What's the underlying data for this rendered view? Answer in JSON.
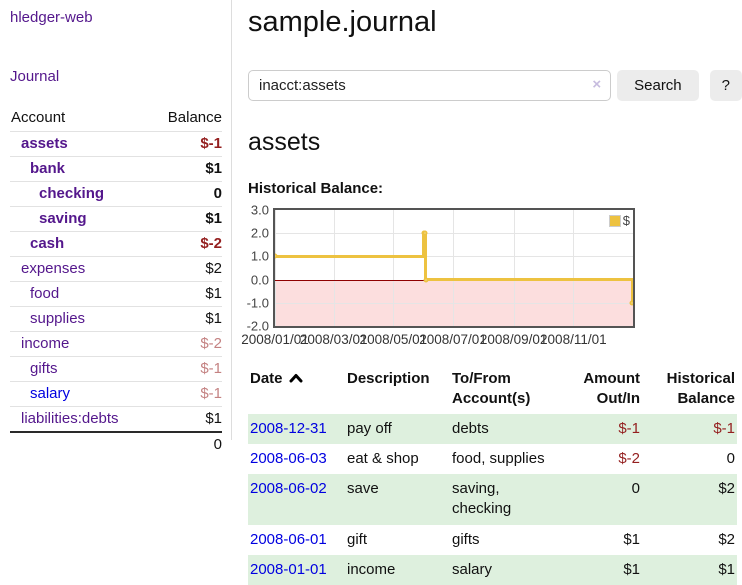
{
  "sidebar": {
    "brand": "hledger-web",
    "journal_link": "Journal",
    "accounts_header": {
      "account": "Account",
      "balance": "Balance"
    },
    "accounts": [
      {
        "name": "assets",
        "balance": "$-1",
        "depth": 1,
        "bold": true,
        "name_color": "purple",
        "balance_class": "neg-strong"
      },
      {
        "name": "bank",
        "balance": "$1",
        "depth": 2,
        "bold": true,
        "name_color": "purple",
        "balance_class": ""
      },
      {
        "name": "checking",
        "balance": "0",
        "depth": 3,
        "bold": true,
        "name_color": "purple",
        "balance_class": ""
      },
      {
        "name": "saving",
        "balance": "$1",
        "depth": 3,
        "bold": true,
        "name_color": "purple",
        "balance_class": ""
      },
      {
        "name": "cash",
        "balance": "$-2",
        "depth": 2,
        "bold": true,
        "name_color": "purple",
        "balance_class": "neg-strong"
      },
      {
        "name": "expenses",
        "balance": "$2",
        "depth": 1,
        "bold": false,
        "name_color": "purple",
        "balance_class": ""
      },
      {
        "name": "food",
        "balance": "$1",
        "depth": 2,
        "bold": false,
        "name_color": "purple",
        "balance_class": ""
      },
      {
        "name": "supplies",
        "balance": "$1",
        "depth": 2,
        "bold": false,
        "name_color": "purple",
        "balance_class": ""
      },
      {
        "name": "income",
        "balance": "$-2",
        "depth": 1,
        "bold": false,
        "name_color": "purple",
        "balance_class": "neg-faded"
      },
      {
        "name": "gifts",
        "balance": "$-1",
        "depth": 2,
        "bold": false,
        "name_color": "purple",
        "balance_class": "neg-faded"
      },
      {
        "name": "salary",
        "balance": "$-1",
        "depth": 2,
        "bold": false,
        "name_color": "blue",
        "balance_class": "neg-faded"
      },
      {
        "name": "liabilities:debts",
        "balance": "$1",
        "depth": 1,
        "bold": false,
        "name_color": "purple",
        "balance_class": ""
      }
    ],
    "total": "0"
  },
  "main": {
    "title": "sample.journal",
    "search": {
      "value": "inacct:assets",
      "clear_icon": "×",
      "button_label": "Search",
      "help_label": "?"
    },
    "account_heading": "assets"
  },
  "chart_data": {
    "type": "line",
    "title": "Historical Balance:",
    "step": true,
    "grid": true,
    "x_range": [
      "2008-01-01",
      "2009-01-01"
    ],
    "ylim": [
      -2,
      3
    ],
    "y_ticks": [
      3.0,
      2.0,
      1.0,
      0.0,
      -1.0,
      -2.0
    ],
    "x_ticks": [
      "2008/01/01",
      "2008/03/01",
      "2008/05/01",
      "2008/07/01",
      "2008/09/01",
      "2008/11/01"
    ],
    "legend_position": "top-right",
    "series": [
      {
        "name": "$",
        "color": "#edc240",
        "points": [
          [
            "2008-01-01",
            1
          ],
          [
            "2008-06-01",
            2
          ],
          [
            "2008-06-02",
            2
          ],
          [
            "2008-06-03",
            0
          ],
          [
            "2008-12-31",
            -1
          ]
        ]
      }
    ],
    "negative_region_color": "#fcdede",
    "zero_line_color": "#8f0000"
  },
  "register": {
    "headers": [
      {
        "lines": [
          "Date"
        ],
        "sort": "asc",
        "align": "left"
      },
      {
        "lines": [
          "Description"
        ],
        "align": "left"
      },
      {
        "lines": [
          "To/From",
          "Account(s)"
        ],
        "align": "left"
      },
      {
        "lines": [
          "Amount",
          "Out/In"
        ],
        "align": "right"
      },
      {
        "lines": [
          "Historical",
          "Balance"
        ],
        "align": "right"
      }
    ],
    "rows": [
      {
        "date": "2008-12-31",
        "description": "pay off",
        "accounts": "debts",
        "amount": "$-1",
        "balance": "$-1",
        "amount_class": "neg-strong",
        "balance_class": "neg-strong"
      },
      {
        "date": "2008-06-03",
        "description": "eat & shop",
        "accounts": "food, supplies",
        "amount": "$-2",
        "balance": "0",
        "amount_class": "neg-strong",
        "balance_class": ""
      },
      {
        "date": "2008-06-02",
        "description": "save",
        "accounts": "saving, checking",
        "amount": "0",
        "balance": "$2",
        "amount_class": "",
        "balance_class": ""
      },
      {
        "date": "2008-06-01",
        "description": "gift",
        "accounts": "gifts",
        "amount": "$1",
        "balance": "$2",
        "amount_class": "",
        "balance_class": ""
      },
      {
        "date": "2008-01-01",
        "description": "income",
        "accounts": "salary",
        "amount": "$1",
        "balance": "$1",
        "amount_class": "",
        "balance_class": ""
      }
    ]
  },
  "colors": {
    "link_purple": "#54178c",
    "link_blue": "#0000e0",
    "negative_strong": "#941f1f",
    "negative_faded": "#c48282",
    "row_stripe_green": "#def0de",
    "series_yellow": "#edc240",
    "negative_region_pink": "#fcdede",
    "zero_line_red": "#8f0000",
    "button_gray": "#ececec"
  }
}
